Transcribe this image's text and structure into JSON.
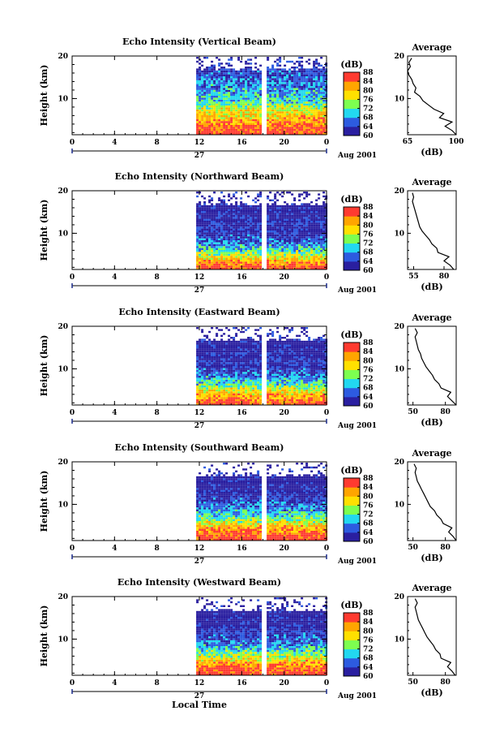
{
  "figure": {
    "time_axis_label": "Local Time",
    "time_ticks": [
      "0",
      "4",
      "8",
      "12",
      "16",
      "20",
      "0"
    ],
    "date_label": "27",
    "month_label": "Aug 2001",
    "height_label": "Height (km)",
    "height_ticks": [
      "20",
      "10"
    ],
    "colorbar_unit": "(dB)",
    "colorbar_ticks": [
      "88",
      "84",
      "80",
      "76",
      "72",
      "68",
      "64",
      "60"
    ],
    "average_title": "Average",
    "average_unit": "(dB)",
    "colors": {
      "red": "#ff3b30",
      "orange": "#ffa500",
      "yellow": "#ffe000",
      "green": "#7dff50",
      "cyan": "#22d8f0",
      "blue": "#2d5be0",
      "navy": "#2a1fa0"
    }
  },
  "chart_data": [
    {
      "type": "heatmap",
      "title": "Echo Intensity (Vertical Beam)",
      "xlabel": "Local Time",
      "ylabel": "Height (km)",
      "xlim": [
        0,
        24
      ],
      "ylim": [
        1.5,
        20
      ],
      "data_start_hour": 11.7,
      "gap_hour": 18.0,
      "colorbar": {
        "label": "(dB)",
        "range": [
          60,
          88
        ],
        "ticks": [
          88,
          84,
          80,
          76,
          72,
          68,
          64,
          60
        ]
      },
      "mean_profile_db": [
        [
          1.5,
          88
        ],
        [
          3,
          86
        ],
        [
          5,
          82
        ],
        [
          6,
          80
        ],
        [
          8,
          76
        ],
        [
          10,
          70
        ],
        [
          12,
          68
        ],
        [
          14,
          67
        ],
        [
          16,
          64
        ],
        [
          18,
          62
        ],
        [
          20,
          60
        ]
      ],
      "average": {
        "xticks": [
          "65",
          "100"
        ],
        "xlim": [
          65,
          100
        ],
        "profile": [
          [
            1.5,
            100
          ],
          [
            2.5,
            97
          ],
          [
            3.5,
            92
          ],
          [
            4.5,
            97
          ],
          [
            5.5,
            88
          ],
          [
            6.5,
            91
          ],
          [
            7.5,
            84
          ],
          [
            8.5,
            80
          ],
          [
            9.5,
            76
          ],
          [
            10.5,
            74
          ],
          [
            11.5,
            70
          ],
          [
            12.5,
            71
          ],
          [
            13.5,
            69
          ],
          [
            14.5,
            68
          ],
          [
            15.5,
            66
          ],
          [
            16.5,
            65
          ],
          [
            17.5,
            67
          ],
          [
            18.5,
            66
          ],
          [
            19.5,
            68
          ]
        ]
      }
    },
    {
      "type": "heatmap",
      "title": "Echo Intensity (Northward Beam)",
      "xlabel": "Local Time",
      "ylabel": "Height (km)",
      "xlim": [
        0,
        24
      ],
      "ylim": [
        1.5,
        20
      ],
      "data_start_hour": 11.7,
      "gap_hour": 18.0,
      "colorbar": {
        "label": "(dB)",
        "range": [
          60,
          88
        ],
        "ticks": [
          88,
          84,
          80,
          76,
          72,
          68,
          64,
          60
        ]
      },
      "mean_profile_db": [
        [
          1.5,
          88
        ],
        [
          3,
          84
        ],
        [
          5,
          76
        ],
        [
          6,
          72
        ],
        [
          8,
          66
        ],
        [
          10,
          63
        ],
        [
          12,
          62
        ],
        [
          14,
          61
        ],
        [
          16,
          60
        ],
        [
          18,
          60
        ]
      ],
      "average": {
        "xticks": [
          "55",
          "80"
        ],
        "xlim": [
          50,
          90
        ],
        "profile": [
          [
            1.5,
            88
          ],
          [
            2.5,
            85
          ],
          [
            3.5,
            80
          ],
          [
            4.5,
            84
          ],
          [
            5.5,
            75
          ],
          [
            6.5,
            74
          ],
          [
            7.5,
            70
          ],
          [
            8.5,
            68
          ],
          [
            9.5,
            65
          ],
          [
            10.5,
            62
          ],
          [
            11.5,
            60
          ],
          [
            12.5,
            59
          ],
          [
            13.5,
            58
          ],
          [
            14.5,
            57
          ],
          [
            15.5,
            56
          ],
          [
            16.5,
            55
          ],
          [
            17.5,
            54
          ],
          [
            18.5,
            55
          ],
          [
            19.5,
            54
          ]
        ]
      }
    },
    {
      "type": "heatmap",
      "title": "Echo Intensity (Eastward Beam)",
      "xlabel": "Local Time",
      "ylabel": "Height (km)",
      "xlim": [
        0,
        24
      ],
      "ylim": [
        1.5,
        20
      ],
      "data_start_hour": 11.7,
      "gap_hour": 18.0,
      "colorbar": {
        "label": "(dB)",
        "range": [
          60,
          88
        ],
        "ticks": [
          88,
          84,
          80,
          76,
          72,
          68,
          64,
          60
        ]
      },
      "mean_profile_db": [
        [
          1.5,
          88
        ],
        [
          3,
          84
        ],
        [
          5,
          78
        ],
        [
          6,
          74
        ],
        [
          8,
          68
        ],
        [
          10,
          64
        ],
        [
          12,
          62
        ],
        [
          14,
          61
        ],
        [
          16,
          60
        ],
        [
          18,
          60
        ]
      ],
      "average": {
        "xticks": [
          "50",
          "80"
        ],
        "xlim": [
          45,
          90
        ],
        "profile": [
          [
            1.5,
            90
          ],
          [
            2.5,
            86
          ],
          [
            3.5,
            82
          ],
          [
            4.5,
            85
          ],
          [
            5.5,
            76
          ],
          [
            6.5,
            74
          ],
          [
            7.5,
            70
          ],
          [
            8.5,
            68
          ],
          [
            9.5,
            65
          ],
          [
            10.5,
            62
          ],
          [
            11.5,
            60
          ],
          [
            12.5,
            58
          ],
          [
            13.5,
            57
          ],
          [
            14.5,
            55
          ],
          [
            15.5,
            54
          ],
          [
            16.5,
            53
          ],
          [
            17.5,
            52
          ],
          [
            18.5,
            54
          ],
          [
            19.5,
            52
          ]
        ]
      }
    },
    {
      "type": "heatmap",
      "title": "Echo Intensity (Southward Beam)",
      "xlabel": "Local Time",
      "ylabel": "Height (km)",
      "xlim": [
        0,
        24
      ],
      "ylim": [
        1.5,
        20
      ],
      "data_start_hour": 11.7,
      "gap_hour": 18.0,
      "colorbar": {
        "label": "(dB)",
        "range": [
          60,
          88
        ],
        "ticks": [
          88,
          84,
          80,
          76,
          72,
          68,
          64,
          60
        ]
      },
      "mean_profile_db": [
        [
          1.5,
          88
        ],
        [
          3,
          86
        ],
        [
          5,
          80
        ],
        [
          6,
          76
        ],
        [
          8,
          70
        ],
        [
          10,
          66
        ],
        [
          12,
          63
        ],
        [
          14,
          61
        ],
        [
          16,
          60
        ],
        [
          18,
          60
        ]
      ],
      "average": {
        "xticks": [
          "50",
          "80"
        ],
        "xlim": [
          45,
          90
        ],
        "profile": [
          [
            1.5,
            90
          ],
          [
            2.5,
            87
          ],
          [
            3.5,
            83
          ],
          [
            4.5,
            86
          ],
          [
            5.5,
            78
          ],
          [
            6.5,
            76
          ],
          [
            7.5,
            72
          ],
          [
            8.5,
            70
          ],
          [
            9.5,
            66
          ],
          [
            10.5,
            64
          ],
          [
            11.5,
            62
          ],
          [
            12.5,
            60
          ],
          [
            13.5,
            58
          ],
          [
            14.5,
            56
          ],
          [
            15.5,
            54
          ],
          [
            16.5,
            53
          ],
          [
            17.5,
            52
          ],
          [
            18.5,
            53
          ],
          [
            19.5,
            51
          ]
        ]
      }
    },
    {
      "type": "heatmap",
      "title": "Echo Intensity (Westward Beam)",
      "xlabel": "Local Time",
      "ylabel": "Height (km)",
      "xlim": [
        0,
        24
      ],
      "ylim": [
        1.5,
        20
      ],
      "data_start_hour": 11.7,
      "gap_hour": 18.0,
      "colorbar": {
        "label": "(dB)",
        "range": [
          60,
          88
        ],
        "ticks": [
          88,
          84,
          80,
          76,
          72,
          68,
          64,
          60
        ]
      },
      "mean_profile_db": [
        [
          1.5,
          88
        ],
        [
          3,
          86
        ],
        [
          5,
          80
        ],
        [
          6,
          76
        ],
        [
          8,
          70
        ],
        [
          10,
          65
        ],
        [
          12,
          63
        ],
        [
          14,
          61
        ],
        [
          16,
          60
        ],
        [
          18,
          60
        ]
      ],
      "average": {
        "xticks": [
          "50",
          "80"
        ],
        "xlim": [
          45,
          90
        ],
        "profile": [
          [
            1.5,
            89
          ],
          [
            2.5,
            86
          ],
          [
            3.5,
            82
          ],
          [
            4.5,
            85
          ],
          [
            5.5,
            76
          ],
          [
            6.5,
            75
          ],
          [
            7.5,
            71
          ],
          [
            8.5,
            69
          ],
          [
            9.5,
            66
          ],
          [
            10.5,
            63
          ],
          [
            11.5,
            61
          ],
          [
            12.5,
            59
          ],
          [
            13.5,
            57
          ],
          [
            14.5,
            55
          ],
          [
            15.5,
            54
          ],
          [
            16.5,
            53
          ],
          [
            17.5,
            52
          ],
          [
            18.5,
            54
          ],
          [
            19.5,
            52
          ]
        ]
      }
    }
  ]
}
